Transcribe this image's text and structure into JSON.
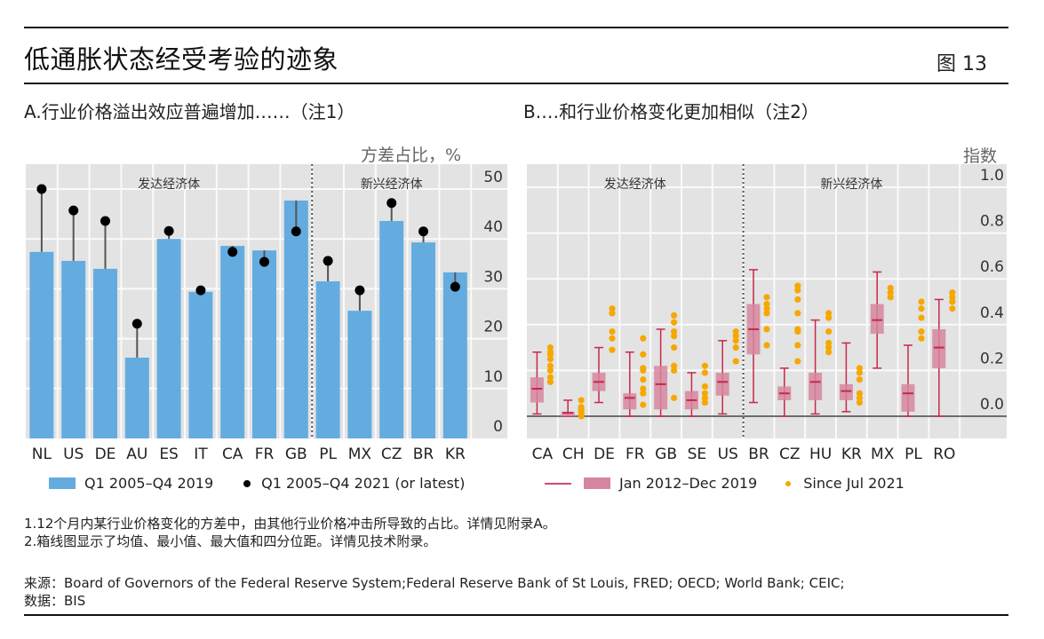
{
  "header": {
    "title": "低通胀状态经受考验的迹象",
    "figure_number": "图 13"
  },
  "chart_data": [
    {
      "type": "bar",
      "panel_title": "A.行业价格溢出效应普遍增加……（注1）",
      "unit_label": "方差占比，%",
      "ylim": [
        0,
        50
      ],
      "yticks": [
        "0",
        "10",
        "20",
        "30",
        "40",
        "50"
      ],
      "grid": true,
      "y_axis_position": "right",
      "groups": [
        {
          "label": "发达经济体",
          "categories": [
            "NL",
            "US",
            "DE",
            "AU",
            "ES",
            "IT",
            "CA",
            "FR",
            "GB"
          ]
        },
        {
          "label": "新兴经济体",
          "categories": [
            "PL",
            "MX",
            "CZ",
            "BR",
            "KR"
          ]
        }
      ],
      "categories": [
        "NL",
        "US",
        "DE",
        "AU",
        "ES",
        "IT",
        "CA",
        "FR",
        "GB",
        "PL",
        "MX",
        "CZ",
        "BR",
        "KR"
      ],
      "series": [
        {
          "name": "Q1 2005–Q4 2019",
          "kind": "bar",
          "color": "#64ACE0",
          "values": [
            37.4,
            35.6,
            34.0,
            16.2,
            40.0,
            29.4,
            38.6,
            37.7,
            47.7,
            31.5,
            25.6,
            43.6,
            39.3,
            33.3
          ]
        },
        {
          "name": "Q1 2005–Q4 2021 (or latest)",
          "kind": "dot",
          "color": "#000000",
          "values": [
            50.0,
            45.7,
            43.6,
            23.0,
            41.6,
            29.7,
            37.4,
            35.4,
            41.5,
            35.6,
            29.7,
            47.2,
            41.5,
            30.4
          ]
        }
      ],
      "legend": [
        "Q1 2005–Q4 2019",
        "Q1 2005–Q4 2021 (or latest)"
      ],
      "legend_position": "bottom"
    },
    {
      "type": "box",
      "panel_title": "B.…和行业价格变化更加相似（注2）",
      "unit_label": "指数",
      "ylim": [
        0,
        1.0
      ],
      "yticks": [
        "0.0",
        "0.2",
        "0.4",
        "0.6",
        "0.8",
        "1.0"
      ],
      "grid": true,
      "y_axis_position": "right",
      "groups": [
        {
          "label": "发达经济体",
          "categories": [
            "CA",
            "CH",
            "DE",
            "FR",
            "GB",
            "SE",
            "US"
          ]
        },
        {
          "label": "新兴经济体",
          "categories": [
            "BR",
            "CZ",
            "HU",
            "KR",
            "MX",
            "PL",
            "RO"
          ]
        }
      ],
      "categories": [
        "CA",
        "CH",
        "DE",
        "FR",
        "GB",
        "SE",
        "US",
        "BR",
        "CZ",
        "HU",
        "KR",
        "MX",
        "PL",
        "RO"
      ],
      "boxes": [
        {
          "min": 0.01,
          "q1": 0.06,
          "mean": 0.12,
          "q3": 0.17,
          "max": 0.28
        },
        {
          "min": 0.0,
          "q1": 0.0,
          "mean": 0.015,
          "q3": 0.02,
          "max": 0.07
        },
        {
          "min": 0.06,
          "q1": 0.11,
          "mean": 0.15,
          "q3": 0.19,
          "max": 0.3
        },
        {
          "min": 0.0,
          "q1": 0.03,
          "mean": 0.08,
          "q3": 0.1,
          "max": 0.28
        },
        {
          "min": 0.0,
          "q1": 0.03,
          "mean": 0.14,
          "q3": 0.22,
          "max": 0.38
        },
        {
          "min": 0.0,
          "q1": 0.03,
          "mean": 0.07,
          "q3": 0.11,
          "max": 0.19
        },
        {
          "min": 0.01,
          "q1": 0.09,
          "mean": 0.15,
          "q3": 0.19,
          "max": 0.33
        },
        {
          "min": 0.06,
          "q1": 0.27,
          "mean": 0.38,
          "q3": 0.49,
          "max": 0.64
        },
        {
          "min": 0.0,
          "q1": 0.07,
          "mean": 0.1,
          "q3": 0.13,
          "max": 0.21
        },
        {
          "min": 0.01,
          "q1": 0.07,
          "mean": 0.15,
          "q3": 0.19,
          "max": 0.42
        },
        {
          "min": 0.02,
          "q1": 0.07,
          "mean": 0.11,
          "q3": 0.14,
          "max": 0.32
        },
        {
          "min": 0.21,
          "q1": 0.36,
          "mean": 0.42,
          "q3": 0.49,
          "max": 0.63
        },
        {
          "min": 0.0,
          "q1": 0.02,
          "mean": 0.1,
          "q3": 0.14,
          "max": 0.31
        },
        {
          "min": 0.0,
          "q1": 0.21,
          "mean": 0.3,
          "q3": 0.38,
          "max": 0.51
        }
      ],
      "recent_points": [
        [
          0.15,
          0.17,
          0.2,
          0.22,
          0.25,
          0.27,
          0.28,
          0.3
        ],
        [
          0.0,
          0.01,
          0.02,
          0.03,
          0.04,
          0.07
        ],
        [
          0.29,
          0.34,
          0.37,
          0.45,
          0.47
        ],
        [
          0.05,
          0.1,
          0.12,
          0.16,
          0.2,
          0.21,
          0.27,
          0.34
        ],
        [
          0.08,
          0.2,
          0.22,
          0.3,
          0.35,
          0.37,
          0.41,
          0.44
        ],
        [
          0.06,
          0.08,
          0.1,
          0.13,
          0.19,
          0.22
        ],
        [
          0.24,
          0.3,
          0.33,
          0.35,
          0.37
        ],
        [
          0.31,
          0.38,
          0.45,
          0.47,
          0.49,
          0.52
        ],
        [
          0.24,
          0.31,
          0.37,
          0.38,
          0.45,
          0.51,
          0.55,
          0.57
        ],
        [
          0.28,
          0.3,
          0.32,
          0.37,
          0.43,
          0.45
        ],
        [
          0.06,
          0.08,
          0.1,
          0.16,
          0.19,
          0.21
        ],
        [
          0.52,
          0.54,
          0.56
        ],
        [
          0.34,
          0.37,
          0.43,
          0.47,
          0.5
        ],
        [
          0.47,
          0.5,
          0.52,
          0.54
        ]
      ],
      "series_colors": {
        "box": "#D6869E",
        "whisker": "#C8284A",
        "points": "#F5A800"
      },
      "legend": [
        "Jan 2012–Dec 2019",
        "Since Jul 2021"
      ],
      "legend_position": "bottom"
    }
  ],
  "notes": [
    "1.12个月内某行业价格变化的方差中，由其他行业价格冲击所导致的占比。详情见附录A。",
    "2.箱线图显示了均值、最小值、最大值和四分位距。详情见技术附录。"
  ],
  "sources": [
    "来源：Board of Governors of the Federal Reserve System;Federal Reserve Bank of St Louis, FRED; OECD; World Bank; CEIC;",
    "数据：BIS"
  ]
}
